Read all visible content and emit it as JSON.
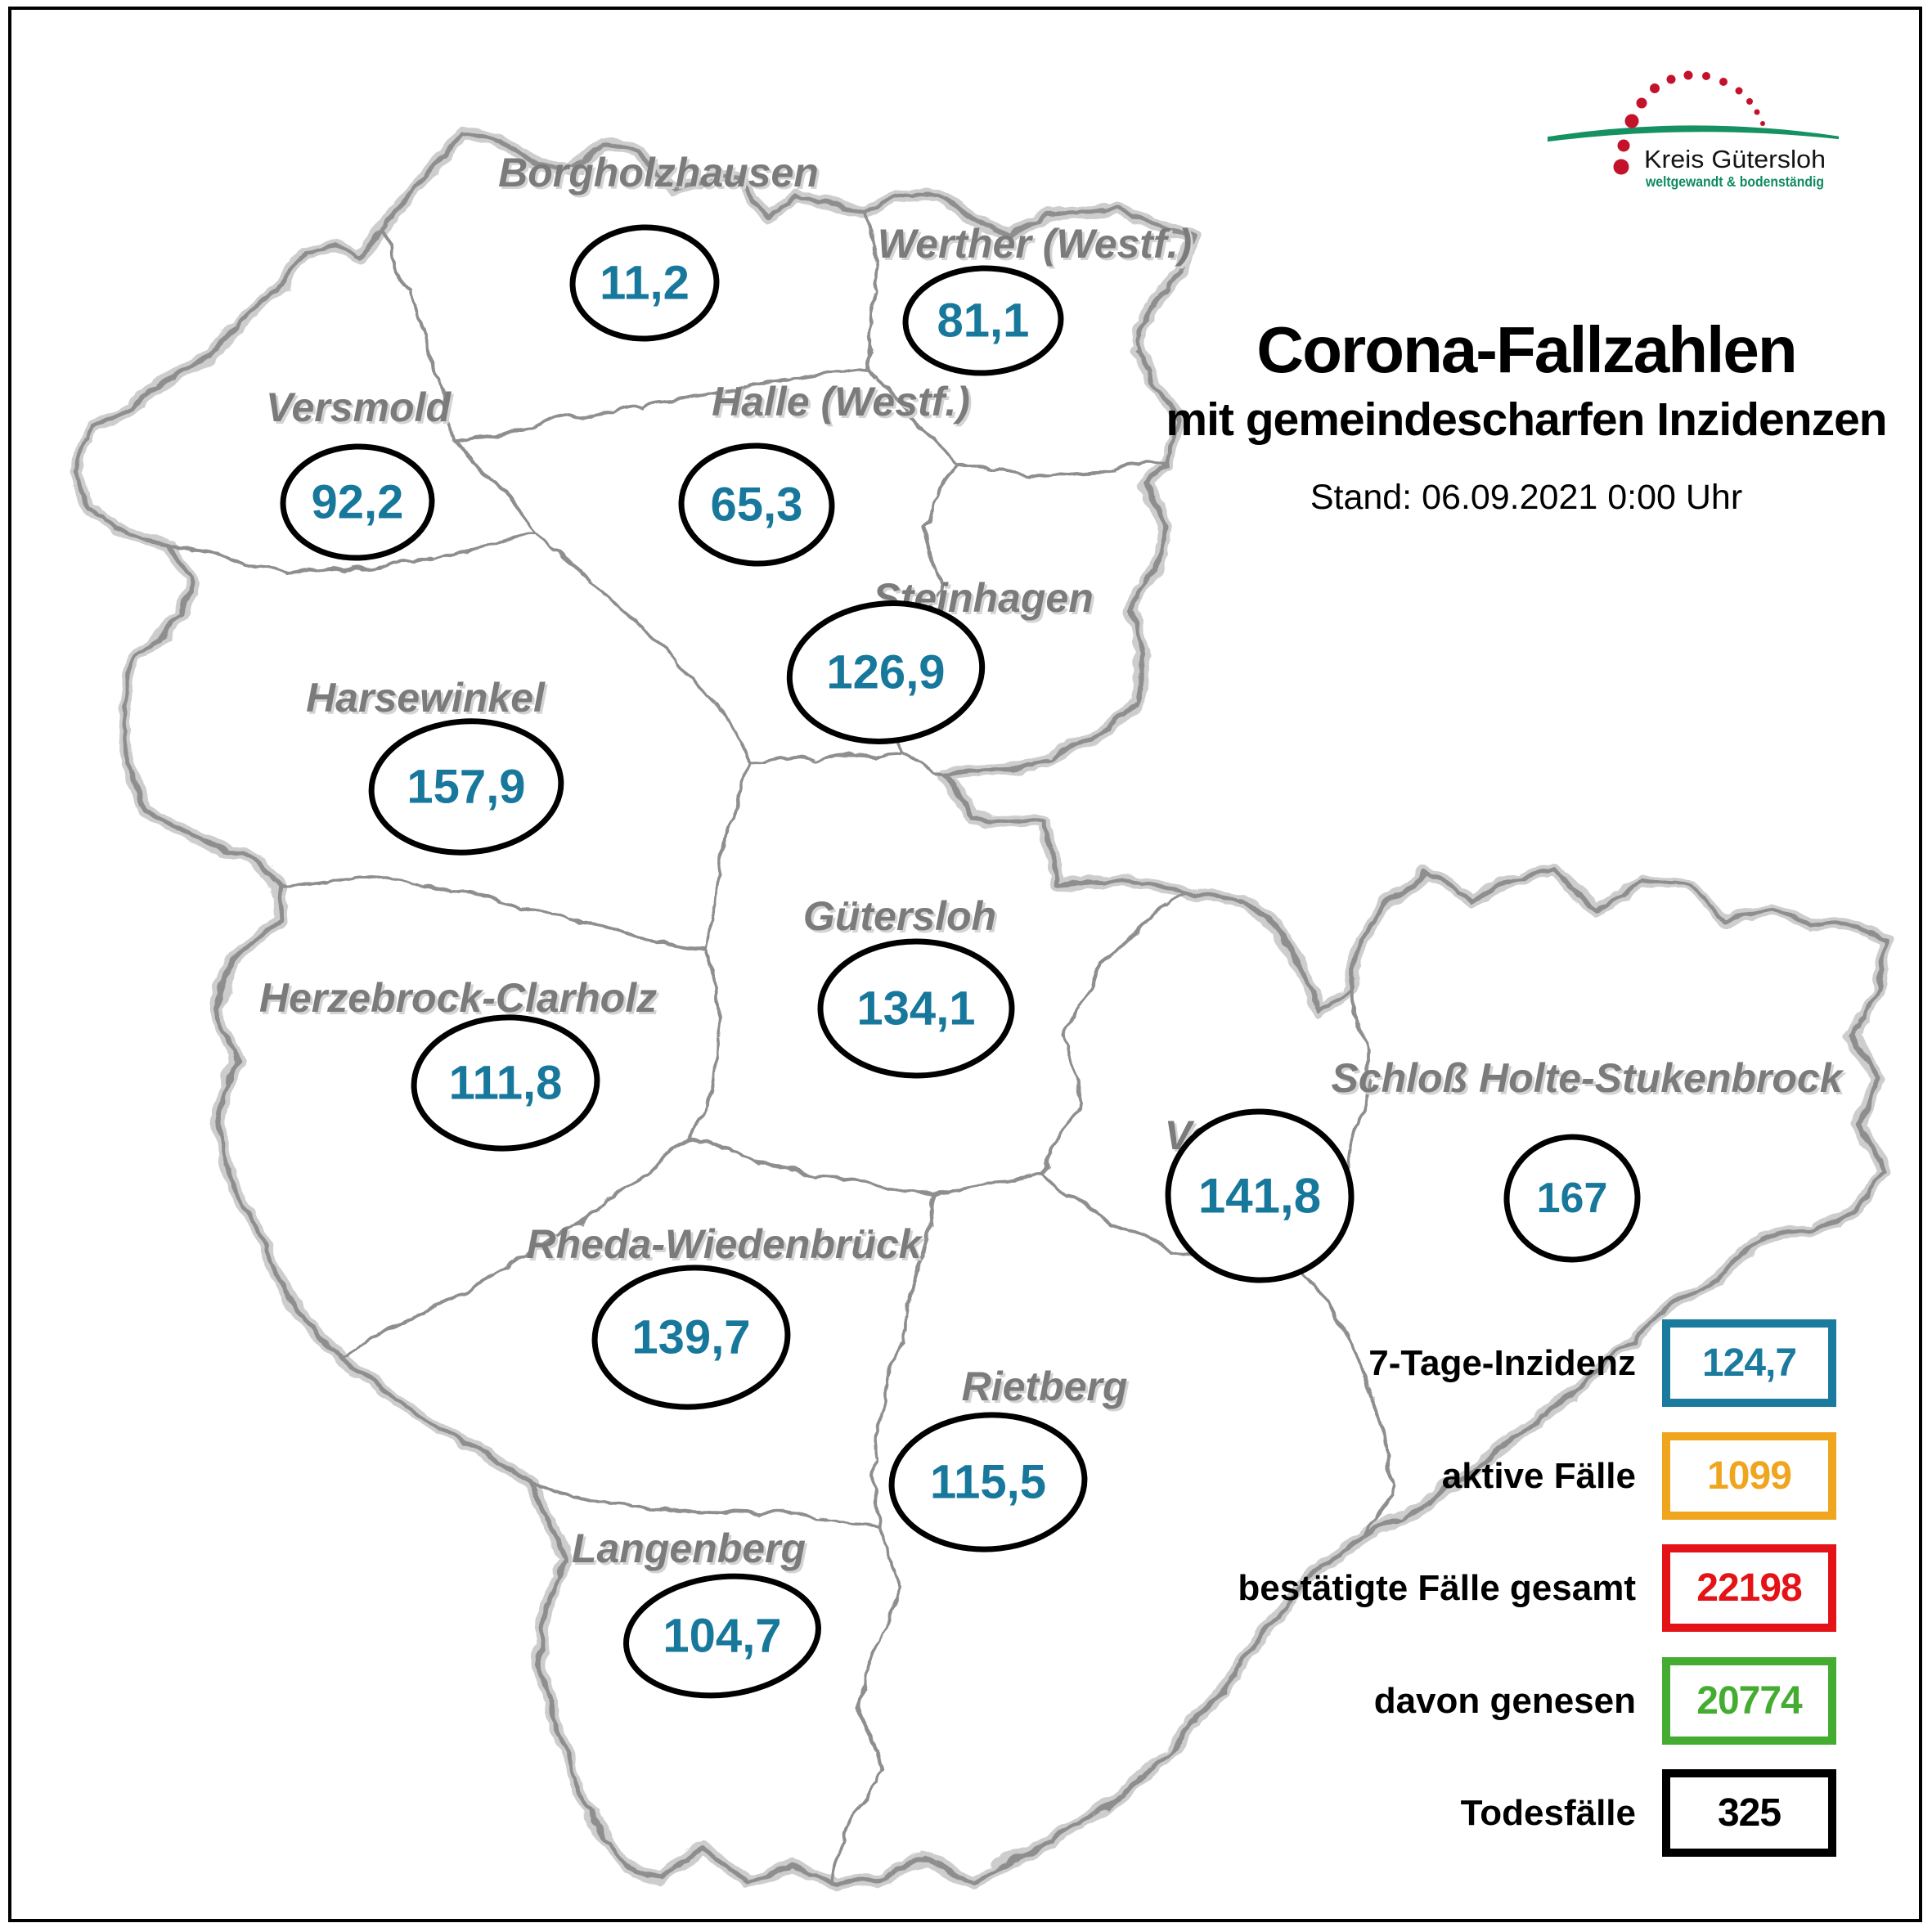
{
  "header": {
    "title": "Corona-Fallzahlen",
    "subtitle": "mit gemeindescharfen Inzidenzen",
    "stand": "Stand: 06.09.2021 0:00 Uhr"
  },
  "logo": {
    "name": "Kreis Gütersloh",
    "tagline": "weltgewandt & bodenständig",
    "colors": {
      "dot_red": "#c5122b",
      "swoosh_green": "#169162",
      "tagline_green": "#0e8a60"
    }
  },
  "map": {
    "label_color": "#7b7b7b",
    "value_color": "#17789c",
    "boundary_color": "#8e8e8e",
    "boundary_halo_color": "#cdcdcd",
    "municipalities": [
      {
        "name": "Borgholzhausen",
        "incidence": "11,2"
      },
      {
        "name": "Werther (Westf.)",
        "incidence": "81,1"
      },
      {
        "name": "Versmold",
        "incidence": "92,2"
      },
      {
        "name": "Halle (Westf.)",
        "incidence": "65,3"
      },
      {
        "name": "Steinhagen",
        "incidence": "126,9"
      },
      {
        "name": "Harsewinkel",
        "incidence": "157,9"
      },
      {
        "name": "Gütersloh",
        "incidence": "134,1"
      },
      {
        "name": "Herzebrock-Clarholz",
        "incidence": "111,8"
      },
      {
        "name": "Verl",
        "incidence": "141,8"
      },
      {
        "name": "Schloß Holte-Stukenbrock",
        "incidence": "167"
      },
      {
        "name": "Rheda-Wiedenbrück",
        "incidence": "139,7"
      },
      {
        "name": "Rietberg",
        "incidence": "115,5"
      },
      {
        "name": "Langenberg",
        "incidence": "104,7"
      }
    ]
  },
  "legend": {
    "rows": [
      {
        "label": "7-Tage-Inzidenz",
        "value": "124,7",
        "color": "#1b7b9e"
      },
      {
        "label": "aktive Fälle",
        "value": "1099",
        "color": "#f0a51f"
      },
      {
        "label": "bestätigte Fälle gesamt",
        "value": "22198",
        "color": "#e41317"
      },
      {
        "label": "davon genesen",
        "value": "20774",
        "color": "#45ac32"
      },
      {
        "label": "Todesfälle",
        "value": "325",
        "color": "#000000"
      }
    ]
  }
}
